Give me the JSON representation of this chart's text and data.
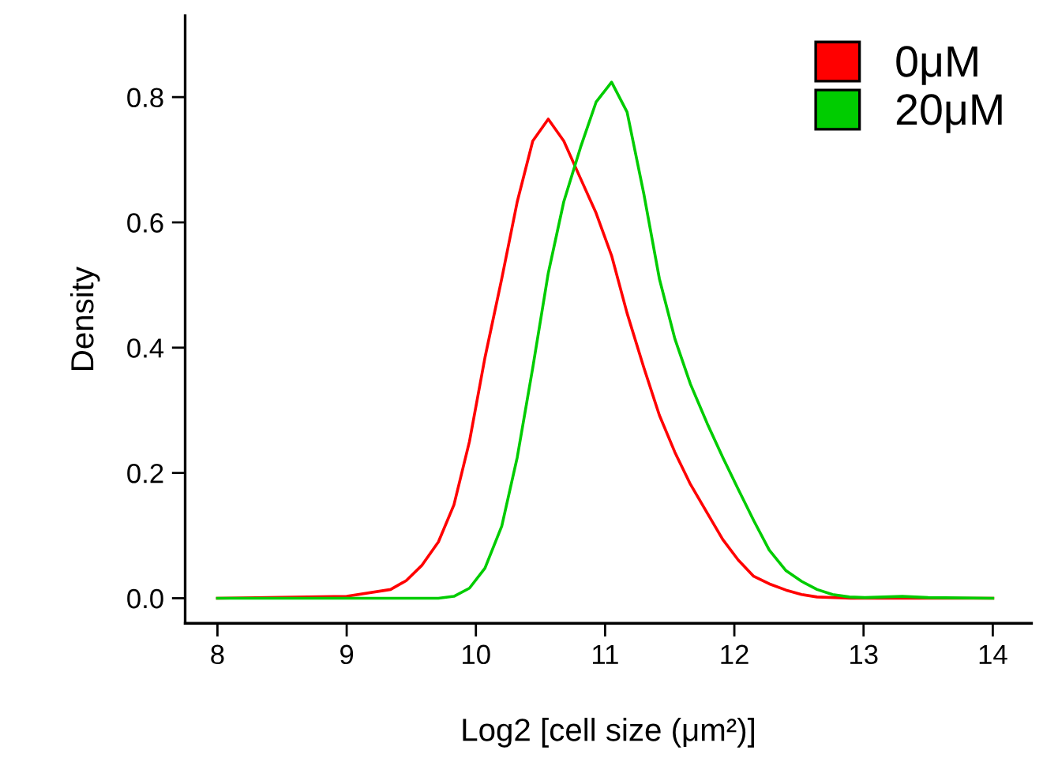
{
  "chart_data": {
    "type": "line",
    "xlabel": "Log2 [cell size (μm²)]",
    "ylabel": "Density",
    "xlim": [
      7.75,
      14.3
    ],
    "ylim": [
      -0.04,
      0.93
    ],
    "xticks": [
      8,
      9,
      10,
      11,
      12,
      13,
      14
    ],
    "yticks": [
      {
        "value": 0,
        "label": "0.0"
      },
      {
        "value": 0.2,
        "label": "0.2"
      },
      {
        "value": 0.4,
        "label": "0.4"
      },
      {
        "value": 0.6,
        "label": "0.6"
      },
      {
        "value": 0.8,
        "label": "0.8"
      }
    ],
    "grid": false,
    "legend": "top right",
    "marker": "none",
    "line_style": "solid",
    "series": [
      {
        "name": "0μM",
        "color": "#ff0000",
        "x": [
          8.0,
          9.0,
          9.34,
          9.46,
          9.58,
          9.71,
          9.83,
          9.95,
          10.07,
          10.2,
          10.32,
          10.44,
          10.56,
          10.68,
          10.81,
          10.93,
          11.05,
          11.17,
          11.3,
          11.42,
          11.54,
          11.66,
          11.79,
          11.91,
          12.03,
          12.15,
          12.27,
          12.4,
          12.52,
          12.64,
          12.9,
          14.0
        ],
        "values": [
          0.0,
          0.003,
          0.014,
          0.028,
          0.052,
          0.09,
          0.149,
          0.25,
          0.384,
          0.51,
          0.633,
          0.73,
          0.765,
          0.73,
          0.67,
          0.615,
          0.547,
          0.455,
          0.368,
          0.292,
          0.233,
          0.182,
          0.136,
          0.094,
          0.061,
          0.035,
          0.023,
          0.013,
          0.006,
          0.002,
          0.0,
          0.0
        ]
      },
      {
        "name": "20μM",
        "color": "#00cc00",
        "x": [
          8.0,
          9.71,
          9.83,
          9.95,
          10.07,
          10.2,
          10.32,
          10.44,
          10.56,
          10.68,
          10.81,
          10.93,
          11.05,
          11.17,
          11.3,
          11.42,
          11.54,
          11.66,
          11.79,
          11.91,
          12.03,
          12.15,
          12.27,
          12.4,
          12.52,
          12.64,
          12.76,
          12.89,
          13.01,
          13.3,
          13.5,
          14.0
        ],
        "values": [
          0.0,
          0.0,
          0.003,
          0.016,
          0.048,
          0.115,
          0.225,
          0.368,
          0.519,
          0.633,
          0.72,
          0.792,
          0.824,
          0.776,
          0.645,
          0.51,
          0.414,
          0.342,
          0.279,
          0.225,
          0.174,
          0.124,
          0.077,
          0.044,
          0.027,
          0.014,
          0.006,
          0.002,
          0.001,
          0.003,
          0.001,
          0.0
        ]
      }
    ]
  }
}
